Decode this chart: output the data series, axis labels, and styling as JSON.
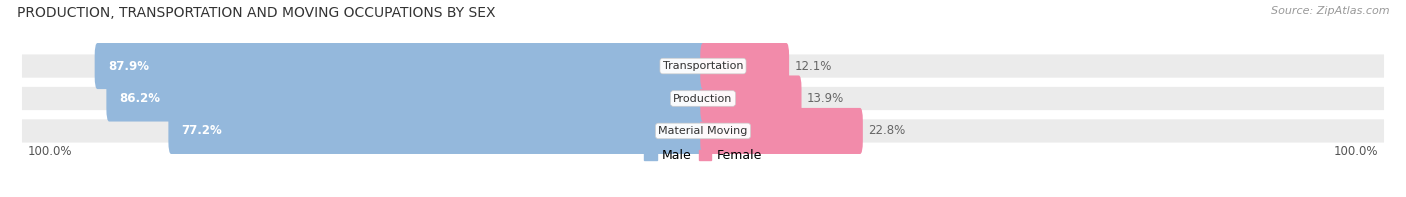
{
  "title": "PRODUCTION, TRANSPORTATION AND MOVING OCCUPATIONS BY SEX",
  "source": "Source: ZipAtlas.com",
  "categories": [
    "Transportation",
    "Production",
    "Material Moving"
  ],
  "male_values": [
    87.9,
    86.2,
    77.2
  ],
  "female_values": [
    12.1,
    13.9,
    22.8
  ],
  "male_color": "#94b8dc",
  "female_color": "#f28baa",
  "bg_color": "#ebebeb",
  "title_fontsize": 10,
  "source_fontsize": 8,
  "label_fontsize": 8.5,
  "axis_label_fontsize": 8.5,
  "legend_fontsize": 9,
  "figsize": [
    14.06,
    1.97
  ],
  "dpi": 100
}
